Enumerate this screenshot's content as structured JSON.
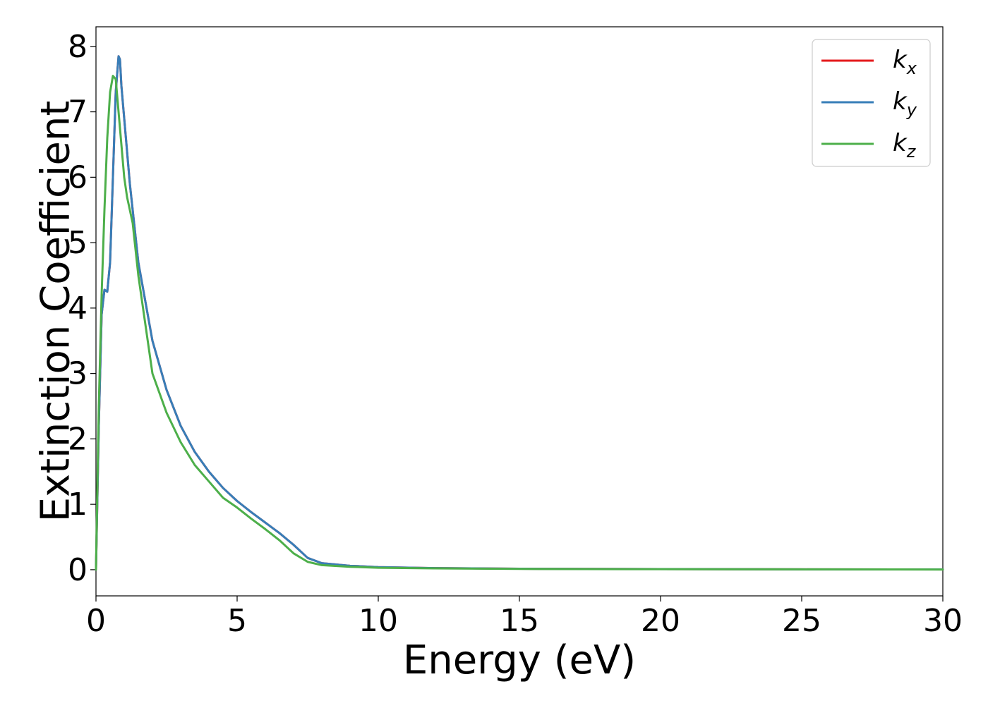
{
  "chart_data": {
    "type": "line",
    "title": "",
    "xlabel": "Energy (eV)",
    "ylabel": "Extinction Coefficient",
    "xlim": [
      0,
      30
    ],
    "ylim": [
      -0.4,
      8.3
    ],
    "xticks": [
      0,
      5,
      10,
      15,
      20,
      25,
      30
    ],
    "yticks": [
      0,
      1,
      2,
      3,
      4,
      5,
      6,
      7,
      8
    ],
    "grid": false,
    "legend_position": "top-right",
    "series": [
      {
        "name": "k_x",
        "legend_base": "k",
        "legend_sub": "x",
        "color": "#e41a1c",
        "x": [
          0,
          0.1,
          0.2,
          0.3,
          0.4,
          0.5,
          0.6,
          0.7,
          0.8,
          0.85,
          0.9,
          1.0,
          1.2,
          1.5,
          2.0,
          2.5,
          3.0,
          3.5,
          4.0,
          4.5,
          5.0,
          5.5,
          6.0,
          6.5,
          7.0,
          7.5,
          8.0,
          9.0,
          10,
          12,
          15,
          20,
          25,
          30
        ],
        "y": [
          0,
          2.2,
          3.9,
          4.28,
          4.25,
          4.7,
          6.0,
          7.3,
          7.85,
          7.8,
          7.4,
          6.9,
          5.9,
          4.7,
          3.5,
          2.75,
          2.2,
          1.8,
          1.5,
          1.25,
          1.05,
          0.88,
          0.72,
          0.56,
          0.38,
          0.18,
          0.1,
          0.06,
          0.04,
          0.025,
          0.015,
          0.01,
          0.006,
          0.004
        ]
      },
      {
        "name": "k_y",
        "legend_base": "k",
        "legend_sub": "y",
        "color": "#377eb8",
        "x": [
          0,
          0.1,
          0.2,
          0.3,
          0.4,
          0.5,
          0.6,
          0.7,
          0.8,
          0.85,
          0.9,
          1.0,
          1.2,
          1.5,
          2.0,
          2.5,
          3.0,
          3.5,
          4.0,
          4.5,
          5.0,
          5.5,
          6.0,
          6.5,
          7.0,
          7.5,
          8.0,
          9.0,
          10,
          12,
          15,
          20,
          25,
          30
        ],
        "y": [
          0,
          2.2,
          3.9,
          4.28,
          4.25,
          4.7,
          6.0,
          7.3,
          7.85,
          7.8,
          7.4,
          6.9,
          5.9,
          4.7,
          3.5,
          2.75,
          2.2,
          1.8,
          1.5,
          1.25,
          1.05,
          0.88,
          0.72,
          0.56,
          0.38,
          0.18,
          0.1,
          0.06,
          0.04,
          0.025,
          0.015,
          0.01,
          0.006,
          0.004
        ]
      },
      {
        "name": "k_z",
        "legend_base": "k",
        "legend_sub": "z",
        "color": "#4daf4a",
        "x": [
          0,
          0.1,
          0.2,
          0.3,
          0.4,
          0.5,
          0.6,
          0.7,
          0.8,
          0.9,
          1.0,
          1.1,
          1.3,
          1.5,
          2.0,
          2.5,
          3.0,
          3.5,
          4.0,
          4.5,
          5.0,
          5.5,
          6.0,
          6.5,
          7.0,
          7.5,
          8.0,
          9.0,
          10,
          12,
          15,
          20,
          25,
          30
        ],
        "y": [
          0,
          2.5,
          4.2,
          5.5,
          6.6,
          7.3,
          7.55,
          7.5,
          7.0,
          6.5,
          6.0,
          5.7,
          5.3,
          4.5,
          3.0,
          2.4,
          1.95,
          1.6,
          1.35,
          1.1,
          0.95,
          0.78,
          0.62,
          0.45,
          0.25,
          0.12,
          0.07,
          0.045,
          0.03,
          0.02,
          0.012,
          0.008,
          0.005,
          0.003
        ]
      }
    ]
  }
}
